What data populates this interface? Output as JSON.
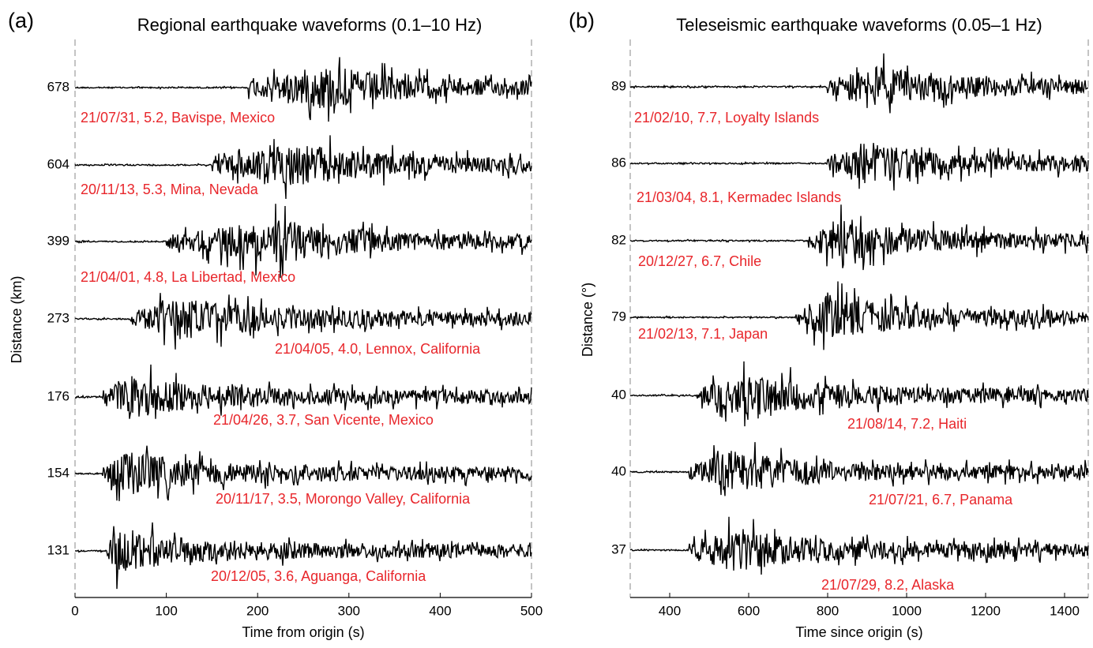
{
  "chart_data": [
    {
      "type": "seismogram",
      "panel": "(a)",
      "title": "Regional earthquake waveforms (0.1–10 Hz)",
      "xlabel": "Time from origin (s)",
      "ylabel": "Distance (km)",
      "xlim": [
        0,
        500
      ],
      "xticks": [
        0,
        100,
        200,
        300,
        400,
        500
      ],
      "categories": [
        678,
        604,
        399,
        273,
        176,
        154,
        131
      ],
      "label_color": "#e8262b",
      "trace_color": "#000000",
      "series": [
        {
          "name": "21/07/31, 5.2, Bavispe, Mexico",
          "onset": 190,
          "peak": 275
        },
        {
          "name": "20/11/13, 5.3, Mina, Nevada",
          "onset": 150,
          "peak": 245
        },
        {
          "name": "21/04/01, 4.8, La Libertad, Mexico",
          "onset": 100,
          "peak": 230
        },
        {
          "name": "21/04/05, 4.0, Lennox, California",
          "onset": 60,
          "peak": 120
        },
        {
          "name": "21/04/26, 3.7, San Vicente, Mexico",
          "onset": 30,
          "peak": 60
        },
        {
          "name": "20/11/17, 3.5, Morongo Valley, California",
          "onset": 30,
          "peak": 60
        },
        {
          "name": "20/12/05, 3.6, Aguanga, California",
          "onset": 35,
          "peak": 45
        }
      ]
    },
    {
      "type": "seismogram",
      "panel": "(b)",
      "title": "Teleseismic earthquake waveforms (0.05–1 Hz)",
      "xlabel": "Time since origin (s)",
      "ylabel": "Distance (°)",
      "xlim": [
        300,
        1460
      ],
      "xticks": [
        400,
        600,
        800,
        1000,
        1200,
        1400
      ],
      "categories": [
        89,
        86,
        82,
        79,
        40,
        40,
        37
      ],
      "label_color": "#e8262b",
      "trace_color": "#000000",
      "series": [
        {
          "name": "21/02/10, 7.7, Loyalty Islands",
          "onset": 800,
          "peak": 900
        },
        {
          "name": "21/03/04, 8.1, Kermadec Islands",
          "onset": 800,
          "peak": 900
        },
        {
          "name": "20/12/27, 6.7, Chile",
          "onset": 750,
          "peak": 830
        },
        {
          "name": "21/02/13, 7.1, Japan",
          "onset": 720,
          "peak": 800
        },
        {
          "name": "21/08/14, 7.2, Haiti",
          "onset": 470,
          "peak": 600
        },
        {
          "name": "21/07/21, 6.7, Panama",
          "onset": 450,
          "peak": 560
        },
        {
          "name": "21/07/29, 8.2, Alaska",
          "onset": 450,
          "peak": 560
        }
      ]
    }
  ]
}
